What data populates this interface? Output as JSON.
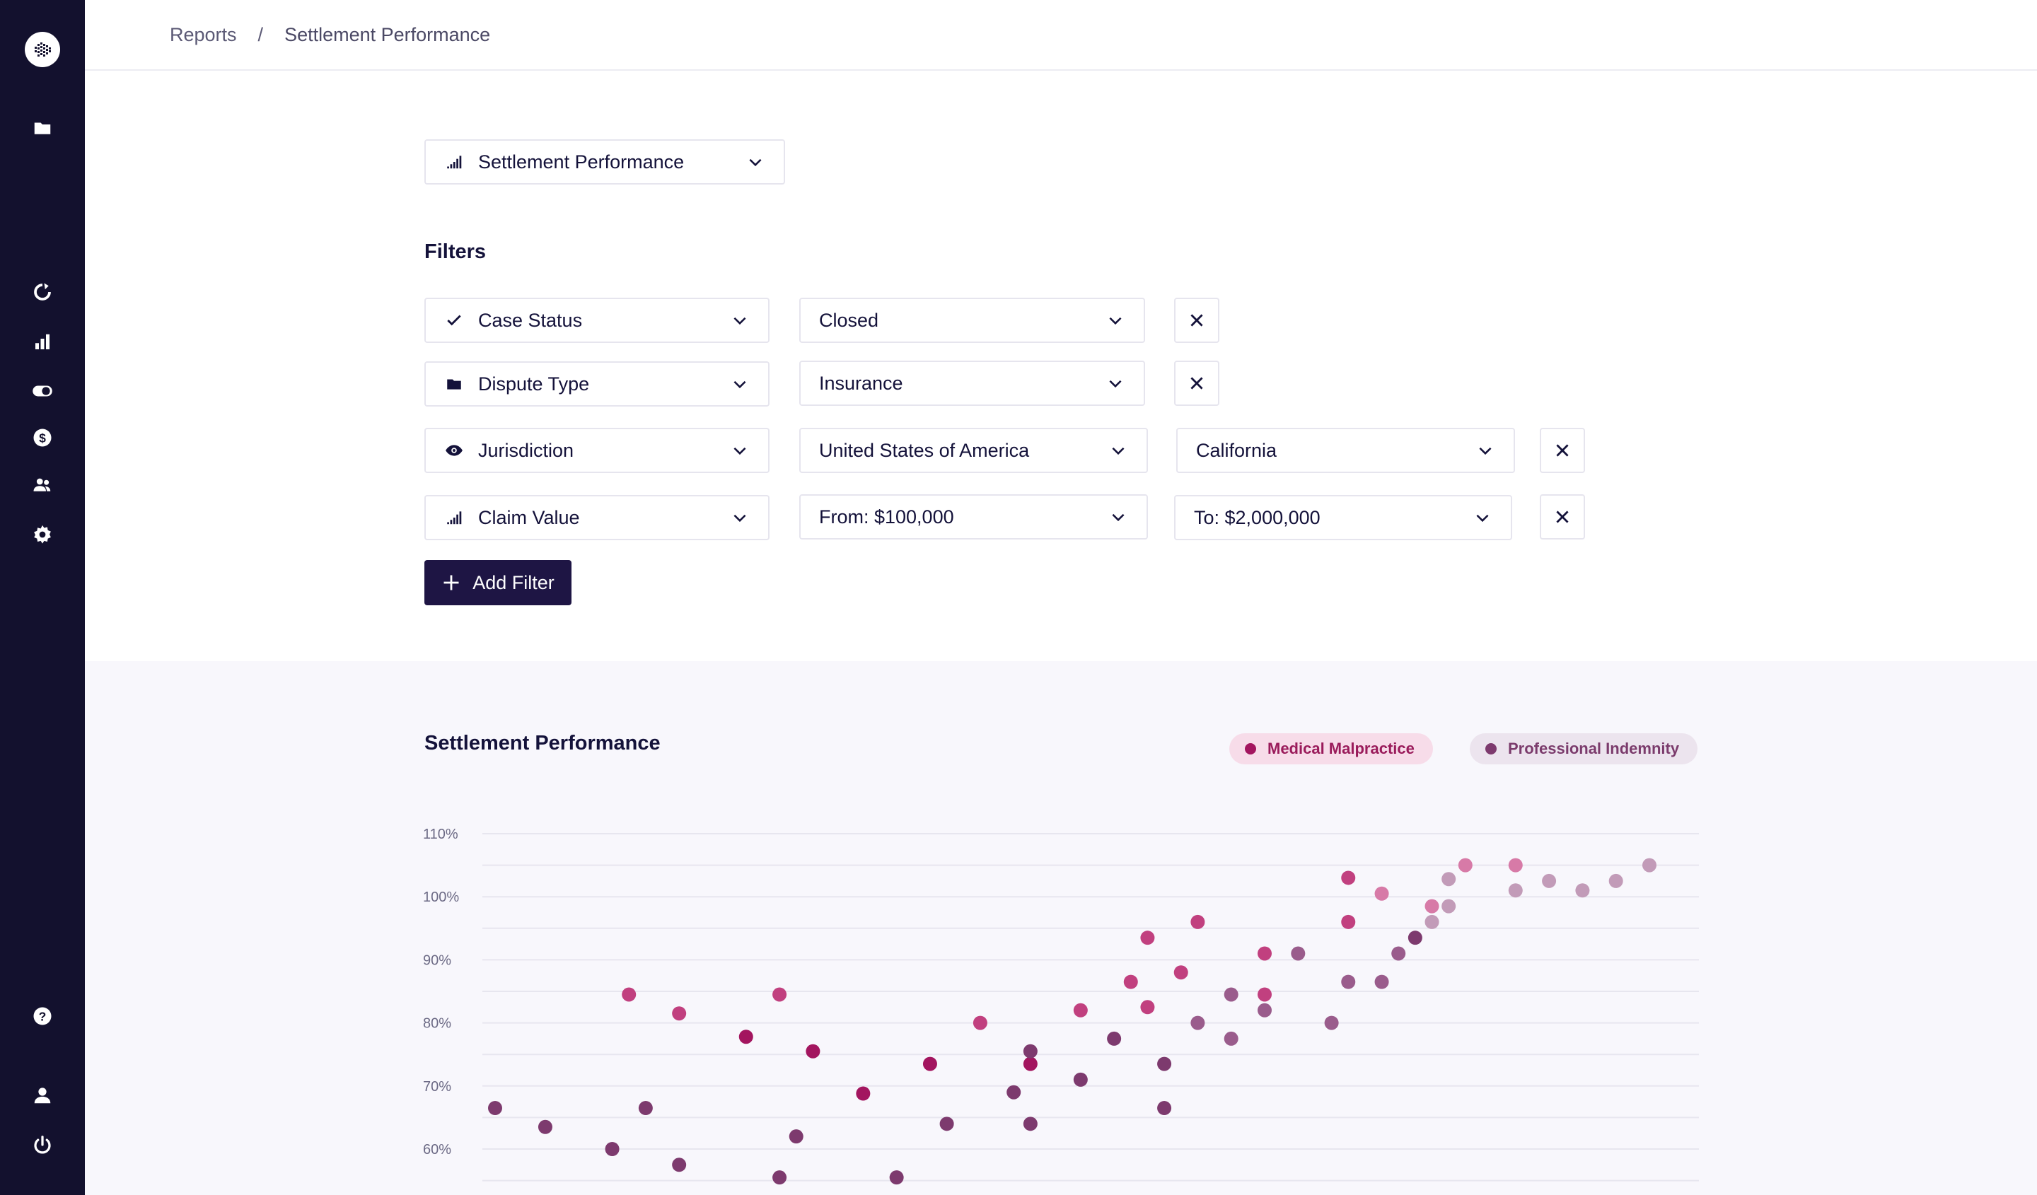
{
  "sidebar": {
    "items": [
      {
        "name": "folder-icon"
      },
      {
        "name": "refresh-icon"
      },
      {
        "name": "bar-chart-icon"
      },
      {
        "name": "toggle-icon"
      },
      {
        "name": "dollar-icon"
      },
      {
        "name": "users-icon"
      },
      {
        "name": "gear-icon"
      },
      {
        "name": "help-icon"
      },
      {
        "name": "user-icon"
      },
      {
        "name": "power-icon"
      }
    ]
  },
  "breadcrumb": {
    "root": "Reports",
    "separator": "/",
    "current": "Settlement Performance"
  },
  "report_selector": {
    "value": "Settlement Performance"
  },
  "filters": {
    "title": "Filters",
    "rows": [
      {
        "field": "Case Status",
        "value": "Closed"
      },
      {
        "field": "Dispute Type",
        "value": "Insurance"
      },
      {
        "field": "Jurisdiction",
        "value": "United States of America",
        "value2": "California"
      },
      {
        "field": "Claim Value",
        "value": "From: $100,000",
        "value2": "To: $2,000,000"
      }
    ],
    "add_label": "Add Filter"
  },
  "chart_data": {
    "type": "scatter",
    "title": "Settlement Performance",
    "ylabel": "",
    "xlabel": "",
    "ylim": [
      55,
      112
    ],
    "yticks": [
      "110%",
      "100%",
      "90%",
      "80%",
      "70%",
      "60%"
    ],
    "ytick_values": [
      110,
      100,
      90,
      80,
      70,
      60
    ],
    "grid": true,
    "legend_placement": "top-right",
    "colors": {
      "Medical Malpractice": "#a3155f",
      "Professional Indemnity": "#7d3a6e"
    },
    "series": [
      {
        "name": "Medical Malpractice",
        "points": [
          {
            "x": 8,
            "y": 84.5,
            "shade": 1
          },
          {
            "x": 11,
            "y": 81.5,
            "shade": 1
          },
          {
            "x": 15,
            "y": 77.8,
            "shade": 0
          },
          {
            "x": 17,
            "y": 84.5,
            "shade": 1
          },
          {
            "x": 19,
            "y": 75.5,
            "shade": 0
          },
          {
            "x": 22,
            "y": 68.8,
            "shade": 0
          },
          {
            "x": 26,
            "y": 73.5,
            "shade": 0
          },
          {
            "x": 29,
            "y": 80,
            "shade": 1
          },
          {
            "x": 32,
            "y": 73.5,
            "shade": 0
          },
          {
            "x": 35,
            "y": 82,
            "shade": 1
          },
          {
            "x": 38,
            "y": 86.5,
            "shade": 1
          },
          {
            "x": 39,
            "y": 82.5,
            "shade": 1
          },
          {
            "x": 39,
            "y": 93.5,
            "shade": 1
          },
          {
            "x": 41,
            "y": 88,
            "shade": 1
          },
          {
            "x": 42,
            "y": 96,
            "shade": 1
          },
          {
            "x": 46,
            "y": 84.5,
            "shade": 1
          },
          {
            "x": 46,
            "y": 91,
            "shade": 1
          },
          {
            "x": 51,
            "y": 96,
            "shade": 1
          },
          {
            "x": 51,
            "y": 103,
            "shade": 1
          },
          {
            "x": 53,
            "y": 100.5,
            "shade": 2
          },
          {
            "x": 56,
            "y": 98.5,
            "shade": 2
          },
          {
            "x": 58,
            "y": 105,
            "shade": 2
          },
          {
            "x": 61,
            "y": 105,
            "shade": 2
          }
        ]
      },
      {
        "name": "Professional Indemnity",
        "points": [
          {
            "x": 0,
            "y": 66.5,
            "shade": 0
          },
          {
            "x": 3,
            "y": 63.5,
            "shade": 0
          },
          {
            "x": 7,
            "y": 60,
            "shade": 0
          },
          {
            "x": 9,
            "y": 66.5,
            "shade": 0
          },
          {
            "x": 11,
            "y": 57.5,
            "shade": 0
          },
          {
            "x": 17,
            "y": 55.5,
            "shade": 0
          },
          {
            "x": 18,
            "y": 62,
            "shade": 0
          },
          {
            "x": 24,
            "y": 55.5,
            "shade": 0
          },
          {
            "x": 27,
            "y": 64,
            "shade": 0
          },
          {
            "x": 31,
            "y": 69,
            "shade": 0
          },
          {
            "x": 32,
            "y": 64,
            "shade": 0
          },
          {
            "x": 32,
            "y": 75.5,
            "shade": 0
          },
          {
            "x": 35,
            "y": 71,
            "shade": 0
          },
          {
            "x": 37,
            "y": 77.5,
            "shade": 0
          },
          {
            "x": 40,
            "y": 66.5,
            "shade": 0
          },
          {
            "x": 40,
            "y": 73.5,
            "shade": 0
          },
          {
            "x": 42,
            "y": 80,
            "shade": 1
          },
          {
            "x": 44,
            "y": 77.5,
            "shade": 1
          },
          {
            "x": 44,
            "y": 84.5,
            "shade": 1
          },
          {
            "x": 46,
            "y": 82,
            "shade": 1
          },
          {
            "x": 48,
            "y": 91,
            "shade": 1
          },
          {
            "x": 50,
            "y": 80,
            "shade": 1
          },
          {
            "x": 51,
            "y": 86.5,
            "shade": 1
          },
          {
            "x": 53,
            "y": 86.5,
            "shade": 1
          },
          {
            "x": 54,
            "y": 91,
            "shade": 1
          },
          {
            "x": 55,
            "y": 93.5,
            "shade": 0
          },
          {
            "x": 56,
            "y": 96,
            "shade": 2
          },
          {
            "x": 57,
            "y": 102.8,
            "shade": 2
          },
          {
            "x": 57,
            "y": 98.5,
            "shade": 2
          },
          {
            "x": 61,
            "y": 101,
            "shade": 2
          },
          {
            "x": 63,
            "y": 102.5,
            "shade": 2
          },
          {
            "x": 65,
            "y": 101,
            "shade": 2
          },
          {
            "x": 67,
            "y": 102.5,
            "shade": 2
          },
          {
            "x": 69,
            "y": 105,
            "shade": 2
          }
        ]
      }
    ]
  }
}
